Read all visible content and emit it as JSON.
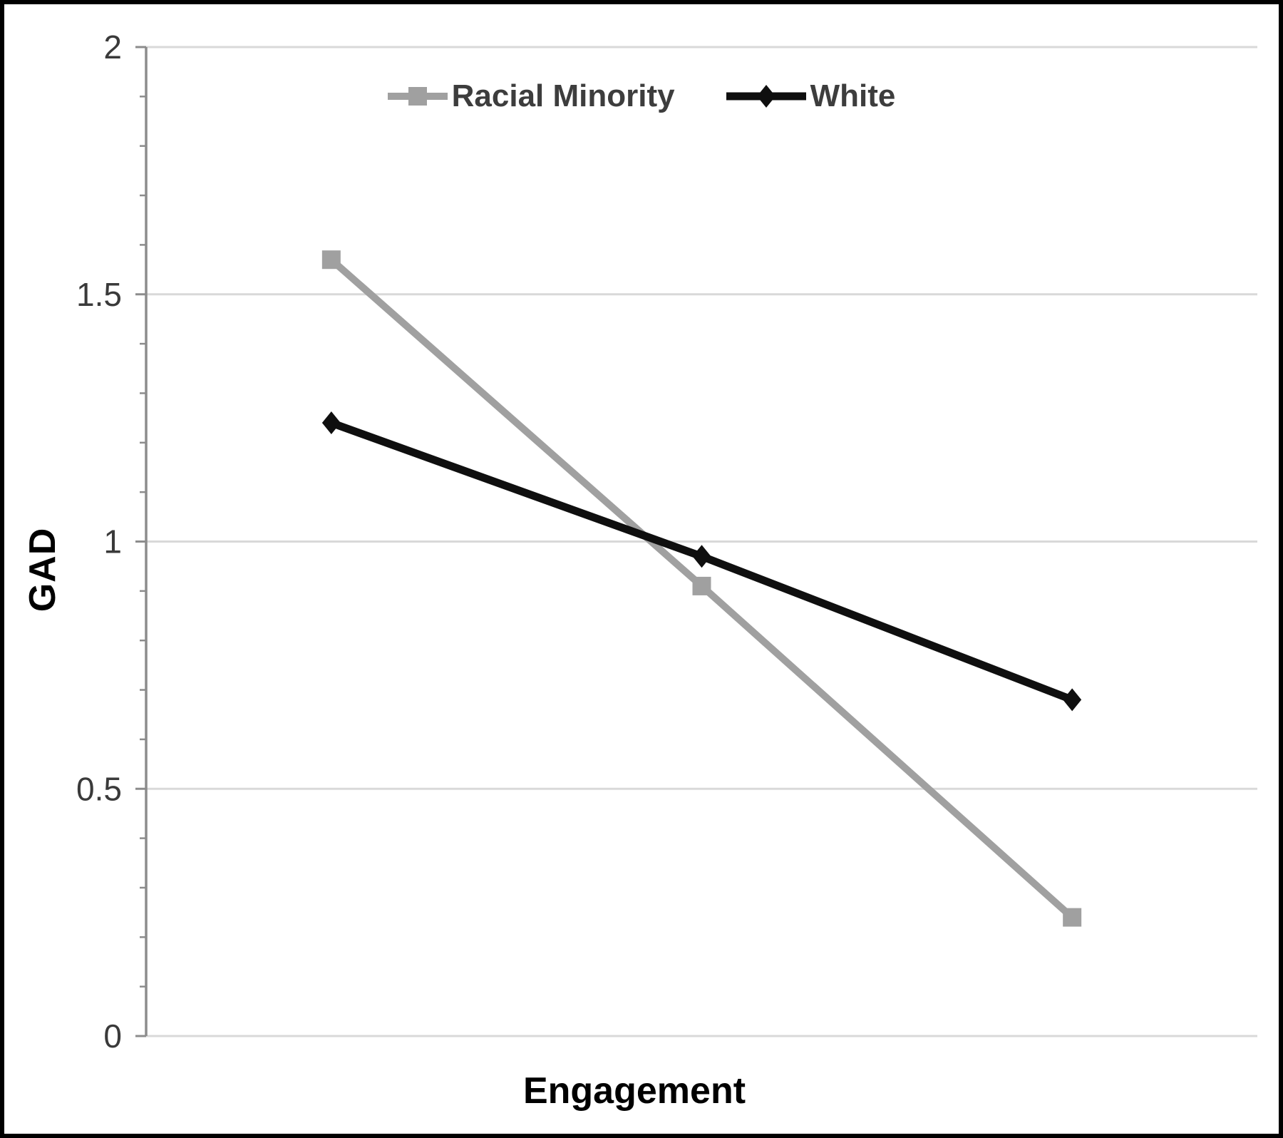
{
  "chart_data": {
    "type": "line",
    "categories": [
      "",
      "",
      ""
    ],
    "series": [
      {
        "name": "Racial Minority",
        "values": [
          1.57,
          0.91,
          0.24
        ],
        "color": "#a0a0a0",
        "marker": "square",
        "line_width": 10
      },
      {
        "name": "White",
        "values": [
          1.24,
          0.97,
          0.68
        ],
        "color": "#0f0f0f",
        "marker": "diamond",
        "line_width": 11
      }
    ],
    "title": "",
    "xlabel": "Engagement",
    "ylabel": "GAD",
    "ylim": [
      0,
      2
    ],
    "y_ticks": [
      0,
      0.5,
      1,
      1.5,
      2
    ],
    "y_tick_labels": [
      "0",
      "0.5",
      "1",
      "1.5",
      "2"
    ],
    "y_minor_tick_step": 0.1,
    "grid": "horizontal",
    "legend_position": "top-center",
    "colors": {
      "gridline": "#d9d9d9",
      "axis": "#8c8c8c",
      "tick_label": "#3a3a3a",
      "axis_title": "#000000",
      "legend_text": "#3d3d3d",
      "background": "#ffffff",
      "frame_border": "#000000"
    }
  }
}
